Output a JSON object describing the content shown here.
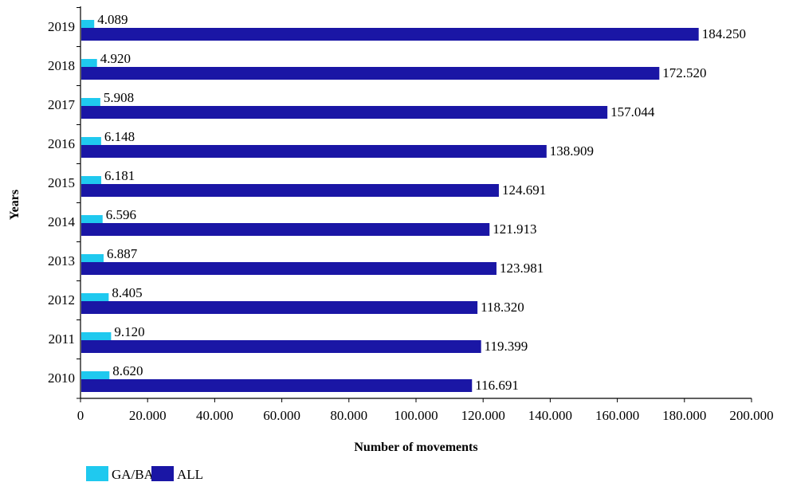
{
  "chart_data": {
    "type": "bar",
    "orientation": "horizontal",
    "categories": [
      "2019",
      "2018",
      "2017",
      "2016",
      "2015",
      "2014",
      "2013",
      "2012",
      "2011",
      "2010"
    ],
    "series": [
      {
        "name": "GA/BA",
        "color": "#1fc9ef",
        "values": [
          4089,
          4920,
          5908,
          6148,
          6181,
          6596,
          6887,
          8405,
          9120,
          8620
        ],
        "labels": [
          "4.089",
          "4.920",
          "5.908",
          "6.148",
          "6.181",
          "6.596",
          "6.887",
          "8.405",
          "9.120",
          "8.620"
        ]
      },
      {
        "name": "ALL",
        "color": "#1a16a5",
        "values": [
          184250,
          172520,
          157044,
          138909,
          124691,
          121913,
          123981,
          118320,
          119399,
          116691
        ],
        "labels": [
          "184.250",
          "172.520",
          "157.044",
          "138.909",
          "124.691",
          "121.913",
          "123.981",
          "118.320",
          "119.399",
          "116.691"
        ]
      }
    ],
    "xlabel": "Number of movements",
    "ylabel": "Years",
    "xlim": [
      0,
      200000
    ],
    "x_ticks": [
      0,
      20000,
      40000,
      60000,
      80000,
      100000,
      120000,
      140000,
      160000,
      180000,
      200000
    ],
    "x_tick_labels": [
      "0",
      "20.000",
      "40.000",
      "60.000",
      "80.000",
      "100.000",
      "120.000",
      "140.000",
      "160.000",
      "180.000",
      "200.000"
    ],
    "grid": false,
    "legend": "bottom-left"
  }
}
